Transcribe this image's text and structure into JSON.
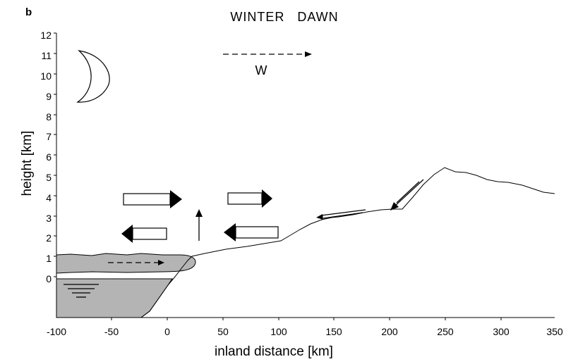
{
  "panel_letter": "b",
  "title": "WINTER   DAWN",
  "x_axis": {
    "label": "inland distance [km]",
    "min": -100,
    "max": 350,
    "ticks": [
      "-100",
      "-50",
      "0",
      "50",
      "100",
      "150",
      "200",
      "250",
      "300",
      "350"
    ]
  },
  "y_axis": {
    "label": "height [km]",
    "min": -2,
    "max": 12,
    "ticks": [
      "0",
      "1",
      "2",
      "3",
      "4",
      "5",
      "6",
      "7",
      "8",
      "9",
      "10",
      "11",
      "12"
    ]
  },
  "wind_label": "W",
  "icons": [
    "moon-icon",
    "sea-wave-icon"
  ],
  "colors": {
    "sea": "#b4b4b4",
    "fog_layer": "#b4b4b4",
    "lines": "#000000",
    "background": "#ffffff"
  }
}
